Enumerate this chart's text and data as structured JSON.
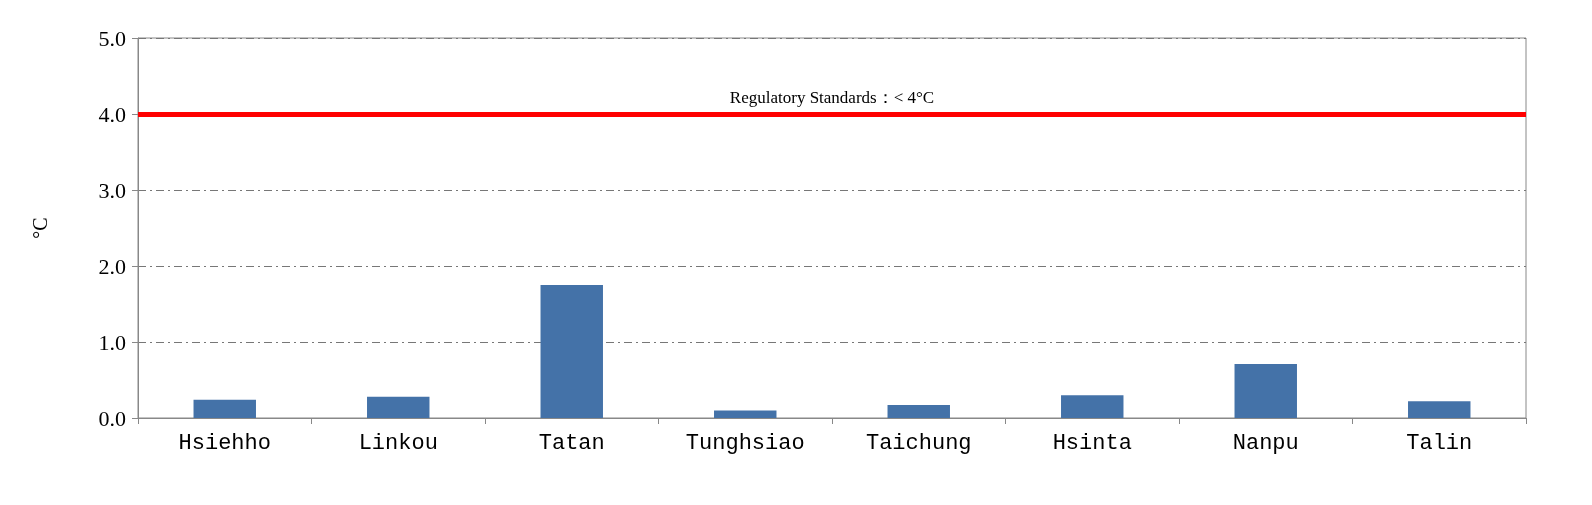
{
  "chart_data": {
    "type": "bar",
    "ylabel": "°C",
    "categories": [
      "Hsiehho",
      "Linkou",
      "Tatan",
      "Tunghsiao",
      "Taichung",
      "Hsinta",
      "Nanpu",
      "Talin"
    ],
    "values": [
      0.24,
      0.28,
      1.75,
      0.1,
      0.17,
      0.3,
      0.71,
      0.22
    ],
    "color": "#4472a8",
    "ylim": [
      0,
      5
    ],
    "yticks": [
      {
        "value": 0,
        "label": "0.0"
      },
      {
        "value": 1,
        "label": "1.0"
      },
      {
        "value": 2,
        "label": "2.0"
      },
      {
        "value": 3,
        "label": "3.0"
      },
      {
        "value": 4,
        "label": "4.0"
      },
      {
        "value": 5,
        "label": "5.0"
      }
    ],
    "grid": "y",
    "ref_lines": [
      {
        "axis": "y",
        "value": 4,
        "label": "Regulatory Standards：< 4°C",
        "color": "#ff0000"
      }
    ]
  }
}
